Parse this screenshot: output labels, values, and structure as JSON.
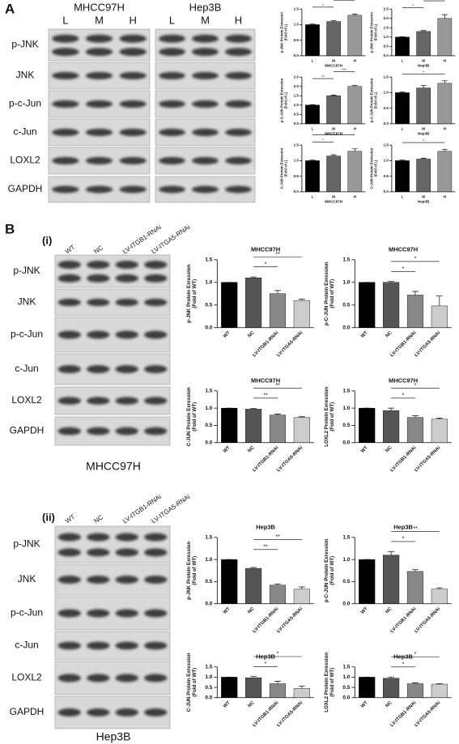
{
  "figure": {
    "panel_a": {
      "label": "A",
      "cell_lines": [
        "MHCC97H",
        "Hep3B"
      ],
      "lanes": [
        "L",
        "M",
        "H"
      ],
      "rows": [
        "p-JNK",
        "JNK",
        "p-c-Jun",
        "c-Jun",
        "LOXL2",
        "GAPDH"
      ]
    },
    "panel_b": {
      "label": "B",
      "parts": [
        {
          "label": "(i)",
          "lanes": [
            "WT",
            "NC",
            "LV-ITGB1-RNAi",
            "LV-ITGA5-RNAi"
          ],
          "rows": [
            "p-JNK",
            "JNK",
            "p-c-Jun",
            "c-Jun",
            "LOXL2",
            "GAPDH"
          ],
          "caption": "MHCC97H"
        },
        {
          "label": "(ii)",
          "lanes": [
            "WT",
            "NC",
            "LV-ITGB1-RNAi",
            "LV-ITGA5-RNAi"
          ],
          "rows": [
            "p-JNK",
            "JNK",
            "p-c-Jun",
            "c-Jun",
            "LOXL2",
            "GAPDH"
          ],
          "caption": "Hep3B"
        }
      ]
    }
  },
  "chart_data": [
    {
      "type": "bar",
      "xlabel": "MHCC97H",
      "ylabel": [
        "p-JNK Protein Exression",
        "(Fold of L)"
      ],
      "categories": [
        "L",
        "M",
        "H"
      ],
      "values": [
        1.0,
        1.1,
        1.3
      ],
      "errors": [
        0.02,
        0.03,
        0.04
      ],
      "colors": [
        "#000000",
        "#666666",
        "#999999"
      ],
      "ylim": [
        0,
        1.5
      ],
      "yticks": [
        {
          "value": 0,
          "label": "0.0"
        },
        0.5,
        {
          "value": 1,
          "label": "1.0"
        },
        1.5
      ],
      "annotations": [
        {
          "text": "*",
          "between": [
            "L",
            "M"
          ]
        },
        {
          "text": "**",
          "between": [
            "M",
            "H"
          ]
        }
      ]
    },
    {
      "type": "bar",
      "xlabel": "Hep3B",
      "ylabel": [
        "p-JNK Protein Exression",
        "(Fold of L)"
      ],
      "categories": [
        "L",
        "M",
        "H"
      ],
      "values": [
        1.0,
        1.3,
        2.0
      ],
      "errors": [
        0.02,
        0.05,
        0.2
      ],
      "colors": [
        "#000000",
        "#666666",
        "#999999"
      ],
      "ylim": [
        0,
        2.5
      ],
      "yticks": [
        {
          "value": 0,
          "label": "0.0"
        },
        0.5,
        {
          "value": 1,
          "label": "1.0"
        },
        1.5,
        {
          "value": 2,
          "label": "2.0"
        },
        2.5
      ],
      "annotations": [
        {
          "text": "*",
          "between": [
            "L",
            "M"
          ]
        },
        {
          "text": "*",
          "between": [
            "M",
            "H"
          ]
        }
      ]
    },
    {
      "type": "bar",
      "xlabel": "MHCC97H",
      "ylabel": [
        "p-C-JUN Protein Exression",
        "(Fold of L)"
      ],
      "categories": [
        "L",
        "M",
        "H"
      ],
      "values": [
        1.0,
        1.5,
        2.0
      ],
      "errors": [
        0.02,
        0.04,
        0.05
      ],
      "colors": [
        "#000000",
        "#666666",
        "#999999"
      ],
      "ylim": [
        0,
        2.5
      ],
      "yticks": [
        {
          "value": 0,
          "label": "0.0"
        },
        0.5,
        {
          "value": 1,
          "label": "1.0"
        },
        1.5,
        {
          "value": 2,
          "label": "2.0"
        },
        2.5
      ],
      "annotations": [
        {
          "text": "**",
          "between": [
            "L",
            "M"
          ]
        },
        {
          "text": "***",
          "between": [
            "M",
            "H"
          ]
        }
      ]
    },
    {
      "type": "bar",
      "xlabel": "Hep3B",
      "ylabel": [
        "p-C-JUN Protein Exression",
        "(Fold of L)"
      ],
      "categories": [
        "L",
        "M",
        "H"
      ],
      "values": [
        1.0,
        1.15,
        1.3
      ],
      "errors": [
        0.02,
        0.08,
        0.08
      ],
      "colors": [
        "#000000",
        "#666666",
        "#999999"
      ],
      "ylim": [
        0,
        1.5
      ],
      "yticks": [
        {
          "value": 0,
          "label": "0.0"
        },
        0.5,
        {
          "value": 1,
          "label": "1.0"
        },
        1.5
      ],
      "annotations": [
        {
          "text": "*",
          "between": [
            "L",
            "H"
          ]
        }
      ]
    },
    {
      "type": "bar",
      "xlabel": "MHCC97H",
      "ylabel": [
        "C-JUN Protein Exression",
        "(Fold of L)"
      ],
      "categories": [
        "L",
        "M",
        "H"
      ],
      "values": [
        1.0,
        1.15,
        1.3
      ],
      "errors": [
        0.02,
        0.04,
        0.08
      ],
      "colors": [
        "#000000",
        "#666666",
        "#999999"
      ],
      "ylim": [
        0,
        1.5
      ],
      "yticks": [
        {
          "value": 0,
          "label": "0.0"
        },
        0.5,
        {
          "value": 1,
          "label": "1.0"
        },
        1.5
      ],
      "annotations": [
        {
          "text": "*",
          "between": [
            "L",
            "M"
          ]
        },
        {
          "text": "*",
          "between": [
            "L",
            "H"
          ]
        }
      ]
    },
    {
      "type": "bar",
      "xlabel": "Hep3B",
      "ylabel": [
        "C-JUN Protein Exression",
        "(Fold of L)"
      ],
      "categories": [
        "L",
        "M",
        "H"
      ],
      "values": [
        1.0,
        1.05,
        1.3
      ],
      "errors": [
        0.02,
        0.03,
        0.06
      ],
      "colors": [
        "#000000",
        "#666666",
        "#999999"
      ],
      "ylim": [
        0,
        1.5
      ],
      "yticks": [
        {
          "value": 0,
          "label": "0.0"
        },
        0.5,
        {
          "value": 1,
          "label": "1.0"
        },
        1.5
      ],
      "annotations": [
        {
          "text": "*",
          "between": [
            "L",
            "H"
          ]
        }
      ]
    },
    {
      "type": "bar",
      "title": "MHCC97H",
      "ylabel": [
        "p-JNK Protein Exression",
        "(Fold of WT)"
      ],
      "categories": [
        "WT",
        "NC",
        "LV-ITGB1-RNAi",
        "LV-ITGA5-RNAi"
      ],
      "values": [
        1.0,
        1.1,
        0.75,
        0.6
      ],
      "errors": [
        0,
        0.02,
        0.07,
        0.03
      ],
      "colors": [
        "#000000",
        "#555555",
        "#888888",
        "#cccccc"
      ],
      "ylim": [
        0,
        1.5
      ],
      "yticks": [
        {
          "value": 0,
          "label": "0.0"
        },
        0.5,
        {
          "value": 1,
          "label": "1.0"
        },
        1.5
      ],
      "annotations": [
        {
          "text": "*",
          "between": [
            "NC",
            "LV-ITGB1-RNAi"
          ]
        },
        {
          "text": "**",
          "between": [
            "NC",
            "LV-ITGA5-RNAi"
          ]
        }
      ]
    },
    {
      "type": "bar",
      "title": "MHCC97H",
      "ylabel": [
        "p-C-JUN Protein Exression",
        "(Fold of WT)"
      ],
      "categories": [
        "WT",
        "NC",
        "LV-ITGB1-RNAi",
        "LV-ITGA5-RNAi"
      ],
      "values": [
        1.0,
        1.0,
        0.72,
        0.48
      ],
      "errors": [
        0,
        0.02,
        0.08,
        0.22
      ],
      "colors": [
        "#000000",
        "#555555",
        "#888888",
        "#cccccc"
      ],
      "ylim": [
        0,
        1.5
      ],
      "yticks": [
        {
          "value": 0,
          "label": "0.0"
        },
        0.5,
        {
          "value": 1,
          "label": "1.0"
        },
        1.5
      ],
      "annotations": [
        {
          "text": "*",
          "between": [
            "NC",
            "LV-ITGB1-RNAi"
          ]
        },
        {
          "text": "*",
          "between": [
            "NC",
            "LV-ITGA5-RNAi"
          ]
        }
      ]
    },
    {
      "type": "bar",
      "title": "MHCC97H",
      "ylabel": [
        "C-JUN Protein Exression",
        "(Fold of WT)"
      ],
      "categories": [
        "WT",
        "NC",
        "LV-ITGB1-RNAi",
        "LV-ITGA5-RNAi"
      ],
      "values": [
        1.0,
        0.97,
        0.8,
        0.73
      ],
      "errors": [
        0,
        0.02,
        0.03,
        0.02
      ],
      "colors": [
        "#000000",
        "#555555",
        "#888888",
        "#cccccc"
      ],
      "ylim": [
        0,
        1.5
      ],
      "yticks": [
        {
          "value": 0,
          "label": "0.0"
        },
        0.5,
        {
          "value": 1,
          "label": "1.0"
        },
        1.5
      ],
      "annotations": [
        {
          "text": "**",
          "between": [
            "NC",
            "LV-ITGB1-RNAi"
          ]
        },
        {
          "text": "**",
          "between": [
            "NC",
            "LV-ITGA5-RNAi"
          ]
        }
      ]
    },
    {
      "type": "bar",
      "title": "MHCC97H",
      "ylabel": [
        "LOXL2 Protein Exression",
        "(Fold of WT)"
      ],
      "categories": [
        "WT",
        "NC",
        "LV-ITGB1-RNAi",
        "LV-ITGA5-RNAi"
      ],
      "values": [
        1.0,
        0.93,
        0.73,
        0.68
      ],
      "errors": [
        0,
        0.07,
        0.05,
        0.03
      ],
      "colors": [
        "#000000",
        "#555555",
        "#888888",
        "#cccccc"
      ],
      "ylim": [
        0,
        1.5
      ],
      "yticks": [
        {
          "value": 0,
          "label": "0.0"
        },
        0.5,
        {
          "value": 1,
          "label": "1.0"
        },
        1.5
      ],
      "annotations": [
        {
          "text": "*",
          "between": [
            "NC",
            "LV-ITGB1-RNAi"
          ]
        },
        {
          "text": "*",
          "between": [
            "NC",
            "LV-ITGA5-RNAi"
          ]
        }
      ]
    },
    {
      "type": "bar",
      "title": "Hep3B",
      "ylabel": [
        "p-JNK Protein Exression",
        "(Fold of WT)"
      ],
      "categories": [
        "WT",
        "NC",
        "LV-ITGB1-RNAi",
        "LV-ITGA5-RNAi"
      ],
      "values": [
        1.0,
        0.8,
        0.42,
        0.33
      ],
      "errors": [
        0,
        0.02,
        0.03,
        0.05
      ],
      "colors": [
        "#000000",
        "#555555",
        "#888888",
        "#cccccc"
      ],
      "ylim": [
        0,
        1.5
      ],
      "yticks": [
        {
          "value": 0,
          "label": "0.0"
        },
        0.5,
        {
          "value": 1,
          "label": "1.0"
        },
        1.5
      ],
      "annotations": [
        {
          "text": "**",
          "between": [
            "NC",
            "LV-ITGB1-RNAi"
          ]
        },
        {
          "text": "**",
          "between": [
            "NC",
            "LV-ITGA5-RNAi"
          ]
        }
      ]
    },
    {
      "type": "bar",
      "title": "Hep3B",
      "ylabel": [
        "p-C-JUN Protein Exression",
        "(Fold of WT)"
      ],
      "categories": [
        "WT",
        "NC",
        "LV-ITGB1-RNAi",
        "LV-ITGA5-RNAi"
      ],
      "values": [
        1.0,
        1.1,
        0.73,
        0.33
      ],
      "errors": [
        0,
        0.08,
        0.04,
        0.03
      ],
      "colors": [
        "#000000",
        "#555555",
        "#888888",
        "#cccccc"
      ],
      "ylim": [
        0,
        1.5
      ],
      "yticks": [
        {
          "value": 0,
          "label": "0.0"
        },
        0.5,
        {
          "value": 1,
          "label": "1.0"
        },
        1.5
      ],
      "annotations": [
        {
          "text": "*",
          "between": [
            "NC",
            "LV-ITGB1-RNAi"
          ]
        },
        {
          "text": "**",
          "between": [
            "NC",
            "LV-ITGA5-RNAi"
          ]
        }
      ]
    },
    {
      "type": "bar",
      "title": "Hep3B",
      "ylabel": [
        "C-JUN Protein Exression",
        "(Fold of WT)"
      ],
      "categories": [
        "WT",
        "NC",
        "LV-ITGB1-RNAi",
        "LV-ITGA5-RNAi"
      ],
      "values": [
        1.0,
        0.97,
        0.68,
        0.45
      ],
      "errors": [
        0,
        0.06,
        0.12,
        0.12
      ],
      "colors": [
        "#000000",
        "#555555",
        "#888888",
        "#cccccc"
      ],
      "ylim": [
        0,
        1.5
      ],
      "yticks": [
        {
          "value": 0,
          "label": "0.0"
        },
        0.5,
        {
          "value": 1,
          "label": "1.0"
        },
        1.5
      ],
      "annotations": [
        {
          "text": "*",
          "between": [
            "NC",
            "LV-ITGB1-RNAi"
          ]
        },
        {
          "text": "*",
          "between": [
            "NC",
            "LV-ITGA5-RNAi"
          ]
        }
      ]
    },
    {
      "type": "bar",
      "title": "Hep3B",
      "ylabel": [
        "LOXL2 Protein Exression",
        "(Fold of WT)"
      ],
      "categories": [
        "WT",
        "NC",
        "LV-ITGB1-RNAi",
        "LV-ITGA5-RNAi"
      ],
      "values": [
        1.0,
        0.95,
        0.68,
        0.66
      ],
      "errors": [
        0,
        0.06,
        0.04,
        0.03
      ],
      "colors": [
        "#000000",
        "#555555",
        "#888888",
        "#cccccc"
      ],
      "ylim": [
        0,
        1.5
      ],
      "yticks": [
        {
          "value": 0,
          "label": "0.0"
        },
        0.5,
        {
          "value": 1,
          "label": "1.0"
        },
        1.5
      ],
      "annotations": [
        {
          "text": "*",
          "between": [
            "NC",
            "LV-ITGB1-RNAi"
          ]
        },
        {
          "text": "*",
          "between": [
            "NC",
            "LV-ITGA5-RNAi"
          ]
        }
      ]
    }
  ]
}
